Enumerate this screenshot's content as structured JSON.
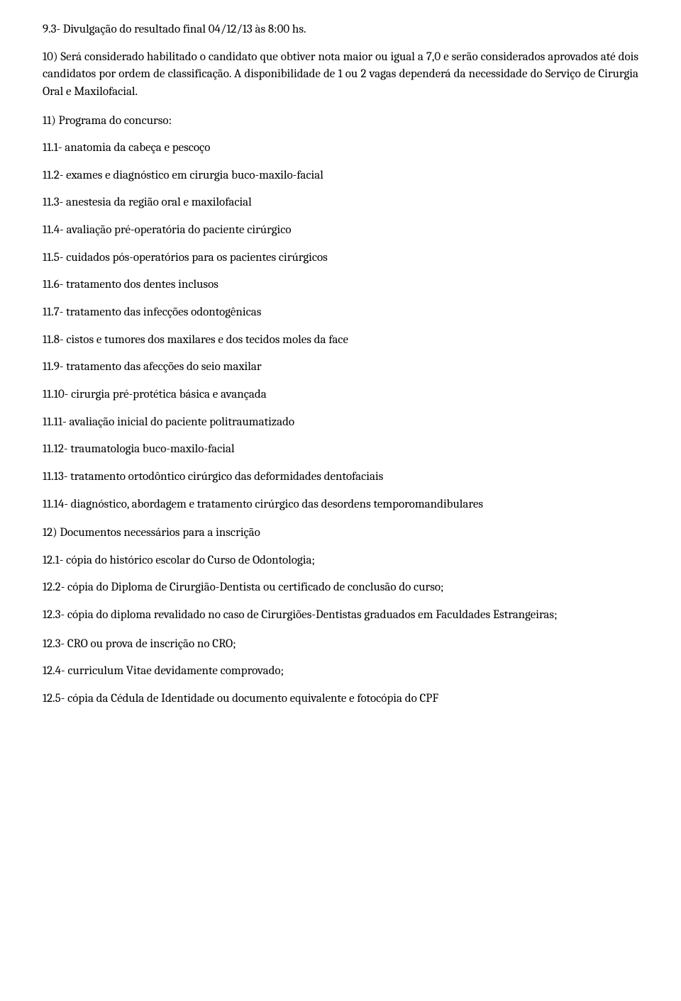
{
  "paragraphs": [
    {
      "text": "9.3- Divulgação do resultado final 04/12/13 às 8:00 hs.",
      "class": "para-close"
    },
    {
      "text": "10) Será considerado habilitado o candidato que obtiver nota maior ou igual a 7,0 e serão considerados aprovados até dois candidatos por ordem de classificação. A disponibilidade de 1 ou 2 vagas dependerá da necessidade do Serviço de Cirurgia Oral e Maxilofacial.",
      "class": "para spread"
    },
    {
      "text": "11) Programa do concurso:",
      "class": "para-close"
    },
    {
      "text": "11.1- anatomia da cabeça e pescoço",
      "class": "para-close"
    },
    {
      "text": "11.2- exames e diagnóstico em cirurgia buco-maxilo-facial",
      "class": "para-close"
    },
    {
      "text": "11.3- anestesia da região oral e maxilofacial",
      "class": "para-close"
    },
    {
      "text": "11.4- avaliação pré-operatória do paciente cirúrgico",
      "class": "para-close"
    },
    {
      "text": "11.5- cuidados pós-operatórios para os pacientes cirúrgicos",
      "class": "para-close"
    },
    {
      "text": "11.6- tratamento dos dentes inclusos",
      "class": "para-close"
    },
    {
      "text": "11.7- tratamento das infecções odontogênicas",
      "class": "para-close"
    },
    {
      "text": "11.8- cistos e tumores dos maxilares e dos tecidos moles da face",
      "class": "para-close"
    },
    {
      "text": "11.9- tratamento das afecções do seio maxilar",
      "class": "para-close"
    },
    {
      "text": "11.10- cirurgia pré-protética básica e avançada",
      "class": "para-close"
    },
    {
      "text": "11.11- avaliação inicial do paciente politraumatizado",
      "class": "para-close"
    },
    {
      "text": "11.12- traumatologia buco-maxilo-facial",
      "class": "para-close"
    },
    {
      "text": "11.13- tratamento ortodôntico cirúrgico das deformidades dentofaciais",
      "class": "para-close"
    },
    {
      "text": "11.14- diagnóstico, abordagem e tratamento cirúrgico das desordens temporomandibulares",
      "class": "para spread"
    },
    {
      "text": "12) Documentos necessários para a inscrição",
      "class": "para-close"
    },
    {
      "text": "12.1-   cópia do histórico escolar do Curso de Odontologia;",
      "class": "para-close"
    },
    {
      "text": "12.2-   cópia do Diploma de Cirurgião-Dentista ou certificado de conclusão do curso;",
      "class": "para-close"
    },
    {
      "text": "12.3-   cópia do diploma revalidado no caso de Cirurgiões-Dentistas graduados em Faculdades Estrangeiras;",
      "class": "para spread"
    },
    {
      "text": "12.3-   CRO ou prova de inscrição no CRO;",
      "class": "para-close"
    },
    {
      "text": "12.4-   curriculum Vitae devidamente comprovado;",
      "class": "para-close"
    },
    {
      "text": "12.5-   cópia da Cédula de Identidade ou documento equivalente e fotocópia do CPF",
      "class": "para-close"
    }
  ]
}
